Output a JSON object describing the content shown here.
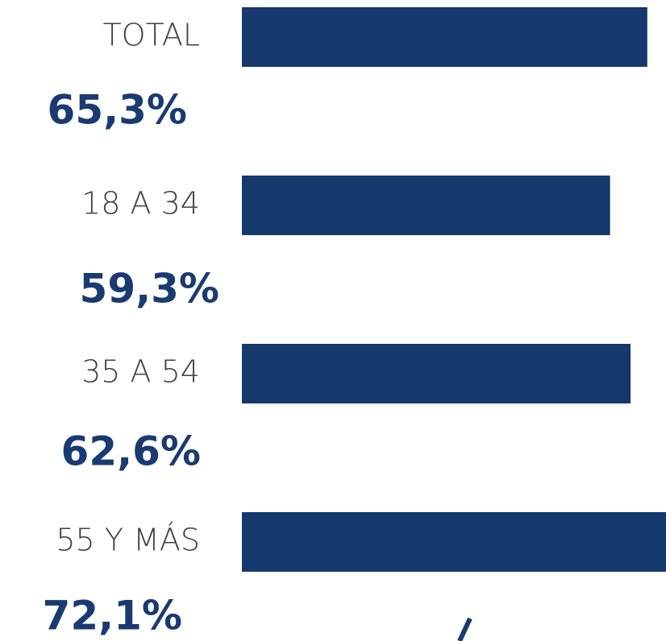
{
  "chart_data": {
    "type": "bar",
    "orientation": "horizontal",
    "categories": [
      "TOTAL",
      "18 A 34",
      "35 A 54",
      "55 Y MÁS"
    ],
    "values": [
      65.3,
      59.3,
      62.6,
      72.1
    ],
    "value_labels": [
      "65,3%",
      "59,3%",
      "62,6%",
      "72,1%"
    ],
    "color": "#15386d",
    "label_color": "#1a3a72"
  }
}
